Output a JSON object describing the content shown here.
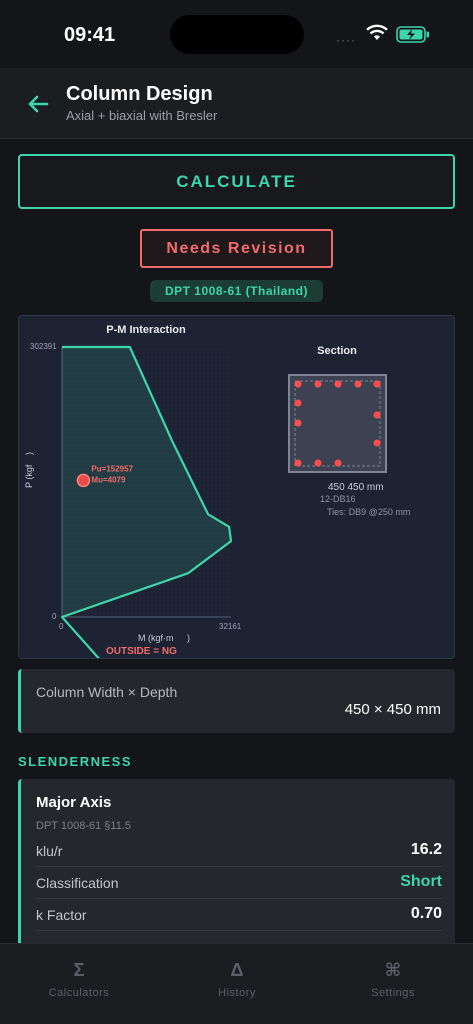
{
  "status": {
    "time": "09:41",
    "signal": "····"
  },
  "header": {
    "title": "Column Design",
    "subtitle": "Axial + biaxial with Bresler"
  },
  "actions": {
    "calculate_label": "CALCULATE"
  },
  "result": {
    "badge": "Needs Revision",
    "standard": "DPT 1008-61 (Thailand)"
  },
  "pm": {
    "title": "P-M Interaction",
    "y_max_label": "302391",
    "y_min_label": "0",
    "x_min_label": "0",
    "x_max_label": "32161",
    "y_axis_label": "P (kgf",
    "y_axis_label_2": ")",
    "x_axis_label": "M (kgf·m",
    "x_axis_label_2": ")",
    "point_pu": "Pu=152957",
    "point_mu": "Mu=4079",
    "outside_label": "OUTSIDE = NG"
  },
  "chart_data": {
    "type": "line",
    "title": "P-M Interaction",
    "xlabel": "M (kgf·m)",
    "ylabel": "P (kgf)",
    "xlim": [
      0,
      32161
    ],
    "ylim": [
      0,
      302391
    ],
    "series": [
      {
        "name": "",
        "x": [
          0,
          12900,
          21000,
          27800,
          31800,
          32161,
          24000,
          0
        ],
        "y": [
          302391,
          302391,
          196500,
          115000,
          101000,
          85000,
          49000,
          0
        ]
      }
    ],
    "points": [
      {
        "label": "Pu=152957 Mu=4079",
        "x": 4079,
        "y": 152957
      }
    ],
    "annotation": "OUTSIDE = NG"
  },
  "section": {
    "title": "Section",
    "dims": "450  450 mm",
    "bars": "12-DB16",
    "ties": "Ties: DB9 @250 mm"
  },
  "column": {
    "label": "Column Width × Depth",
    "value": "450 × 450 mm"
  },
  "slenderness": {
    "heading": "SLENDERNESS",
    "axis_title": "Major Axis",
    "reference": "DPT 1008-61 §11.5",
    "rows": [
      {
        "key": "klu/r",
        "value": "16.2"
      },
      {
        "key": "Classification",
        "value": "Short"
      },
      {
        "key": "k Factor",
        "value": "0.70"
      }
    ]
  },
  "tabs": [
    {
      "icon": "Σ",
      "label": "Calculators"
    },
    {
      "icon": "Δ",
      "label": "History"
    },
    {
      "icon": "⌘",
      "label": "Settings"
    }
  ],
  "colors": {
    "accent": "#3dd6a8",
    "danger": "#f26b6b",
    "bg": "#141518",
    "card": "#25272c"
  }
}
